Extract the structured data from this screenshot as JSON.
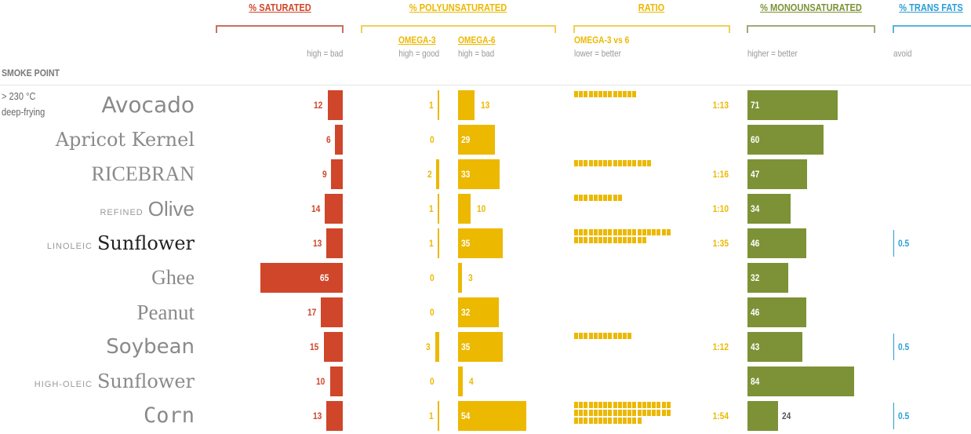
{
  "headers": {
    "saturated": {
      "title": "% SATURATED",
      "note": "high = bad"
    },
    "poly": {
      "title": "% POLYUNSATURATED",
      "omega3": "OMEGA-3",
      "omega3_note": "high = good",
      "omega6": "OMEGA-6",
      "omega6_note": "high = bad"
    },
    "ratio": {
      "title": "RATIO",
      "sub": "OMEGA-3 vs 6",
      "note": "lower = better"
    },
    "mono": {
      "title": "% MONOUNSATURATED",
      "note": "higher = better"
    },
    "trans": {
      "title": "% TRANS FATS",
      "note": "avoid"
    },
    "smoke_point": "SMOKE POINT"
  },
  "smoke_point_row": {
    "temp": "> 230 °C",
    "use": "deep-frying"
  },
  "colors": {
    "saturated": "#d0462a",
    "poly": "#ecb800",
    "mono": "#7d9236",
    "trans": "#2a9fd6"
  },
  "chart_data": {
    "type": "bar",
    "categories": [
      "Avocado",
      "Apricot Kernel",
      "RICEBRAN",
      "Olive",
      "Sunflower",
      "Ghee",
      "Peanut",
      "Soybean",
      "Sunflower",
      "Corn"
    ],
    "prefixes": [
      "",
      "",
      "",
      "REFINED",
      "LINOLEIC",
      "",
      "",
      "",
      "HIGH-OLEIC",
      ""
    ],
    "series": [
      {
        "name": "% SATURATED",
        "values": [
          12,
          6,
          9,
          14,
          13,
          65,
          17,
          15,
          10,
          13
        ]
      },
      {
        "name": "OMEGA-3",
        "values": [
          1,
          0,
          2,
          1,
          1,
          0,
          0,
          3,
          0,
          1
        ]
      },
      {
        "name": "OMEGA-6",
        "values": [
          13,
          29,
          33,
          10,
          35,
          3,
          32,
          35,
          4,
          54
        ]
      },
      {
        "name": "% MONOUNSATURATED",
        "values": [
          71,
          60,
          47,
          34,
          46,
          32,
          46,
          43,
          84,
          24
        ]
      },
      {
        "name": "% TRANS FATS",
        "values": [
          null,
          null,
          null,
          null,
          0.5,
          null,
          null,
          0.5,
          null,
          0.5
        ]
      }
    ],
    "ratio": {
      "name": "OMEGA-3 vs 6",
      "labels": [
        "1:13",
        "",
        "1:16",
        "1:10",
        "1:35",
        "",
        "",
        "1:12",
        "",
        "1:54"
      ],
      "values": [
        13,
        null,
        16,
        10,
        35,
        null,
        null,
        12,
        null,
        54
      ]
    }
  }
}
